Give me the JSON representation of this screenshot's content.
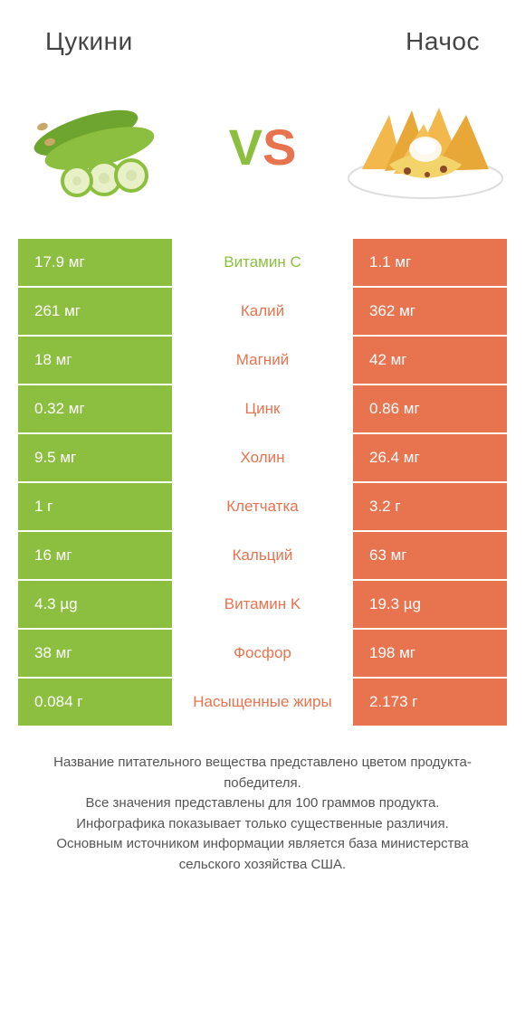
{
  "header": {
    "left_title": "Цукини",
    "right_title": "Начос"
  },
  "vs": {
    "v": "V",
    "s": "S",
    "v_color": "#8cbf3f",
    "s_color": "#e8734f"
  },
  "colors": {
    "green": "#8cbf3f",
    "orange": "#e8734f",
    "row_alt_left_bg": "#ffffff",
    "row_alt_right_bg": "#ffffff"
  },
  "rows": [
    {
      "left": "17.9 мг",
      "label": "Витамин C",
      "right": "1.1 мг",
      "winner": "left"
    },
    {
      "left": "261 мг",
      "label": "Калий",
      "right": "362 мг",
      "winner": "right"
    },
    {
      "left": "18 мг",
      "label": "Магний",
      "right": "42 мг",
      "winner": "right"
    },
    {
      "left": "0.32 мг",
      "label": "Цинк",
      "right": "0.86 мг",
      "winner": "right"
    },
    {
      "left": "9.5 мг",
      "label": "Холин",
      "right": "26.4 мг",
      "winner": "right"
    },
    {
      "left": "1 г",
      "label": "Клетчатка",
      "right": "3.2 г",
      "winner": "right"
    },
    {
      "left": "16 мг",
      "label": "Кальций",
      "right": "63 мг",
      "winner": "right"
    },
    {
      "left": "4.3 µg",
      "label": "Витамин K",
      "right": "19.3 µg",
      "winner": "right"
    },
    {
      "left": "38 мг",
      "label": "Фосфор",
      "right": "198 мг",
      "winner": "right"
    },
    {
      "left": "0.084 г",
      "label": "Насыщенные жиры",
      "right": "2.173 г",
      "winner": "right"
    }
  ],
  "footer": {
    "line1": "Название питательного вещества представлено цветом продукта-победителя.",
    "line2": "Все значения представлены для 100 граммов продукта.",
    "line3": "Инфографика показывает только существенные различия.",
    "line4": "Основным источником информации является база министерства сельского хозяйства США."
  }
}
